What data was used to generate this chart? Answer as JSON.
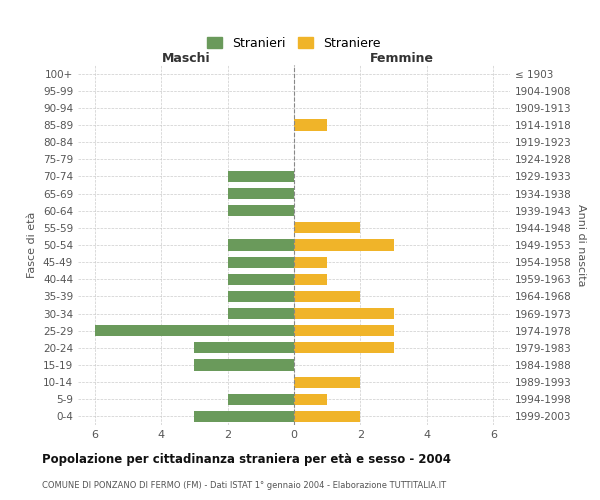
{
  "age_groups": [
    "100+",
    "95-99",
    "90-94",
    "85-89",
    "80-84",
    "75-79",
    "70-74",
    "65-69",
    "60-64",
    "55-59",
    "50-54",
    "45-49",
    "40-44",
    "35-39",
    "30-34",
    "25-29",
    "20-24",
    "15-19",
    "10-14",
    "5-9",
    "0-4"
  ],
  "birth_years": [
    "≤ 1903",
    "1904-1908",
    "1909-1913",
    "1914-1918",
    "1919-1923",
    "1924-1928",
    "1929-1933",
    "1934-1938",
    "1939-1943",
    "1944-1948",
    "1949-1953",
    "1954-1958",
    "1959-1963",
    "1964-1968",
    "1969-1973",
    "1974-1978",
    "1979-1983",
    "1984-1988",
    "1989-1993",
    "1994-1998",
    "1999-2003"
  ],
  "males": [
    0,
    0,
    0,
    0,
    0,
    0,
    2,
    2,
    2,
    0,
    2,
    2,
    2,
    2,
    2,
    6,
    3,
    3,
    0,
    2,
    3
  ],
  "females": [
    0,
    0,
    0,
    1,
    0,
    0,
    0,
    0,
    0,
    2,
    3,
    1,
    1,
    2,
    3,
    3,
    3,
    0,
    2,
    1,
    2
  ],
  "male_color": "#6a9a5b",
  "female_color": "#f0b429",
  "background_color": "#ffffff",
  "grid_color": "#cccccc",
  "title": "Popolazione per cittadinanza straniera per età e sesso - 2004",
  "subtitle": "COMUNE DI PONZANO DI FERMO (FM) - Dati ISTAT 1° gennaio 2004 - Elaborazione TUTTITALIA.IT",
  "xlabel_left": "Maschi",
  "xlabel_right": "Femmine",
  "ylabel_left": "Fasce di età",
  "ylabel_right": "Anni di nascita",
  "legend_male": "Stranieri",
  "legend_female": "Straniere",
  "xlim": 6.5,
  "xticks": [
    -6,
    -4,
    -2,
    0,
    2,
    4,
    6
  ],
  "xtick_labels": [
    "6",
    "4",
    "2",
    "0",
    "2",
    "4",
    "6"
  ]
}
